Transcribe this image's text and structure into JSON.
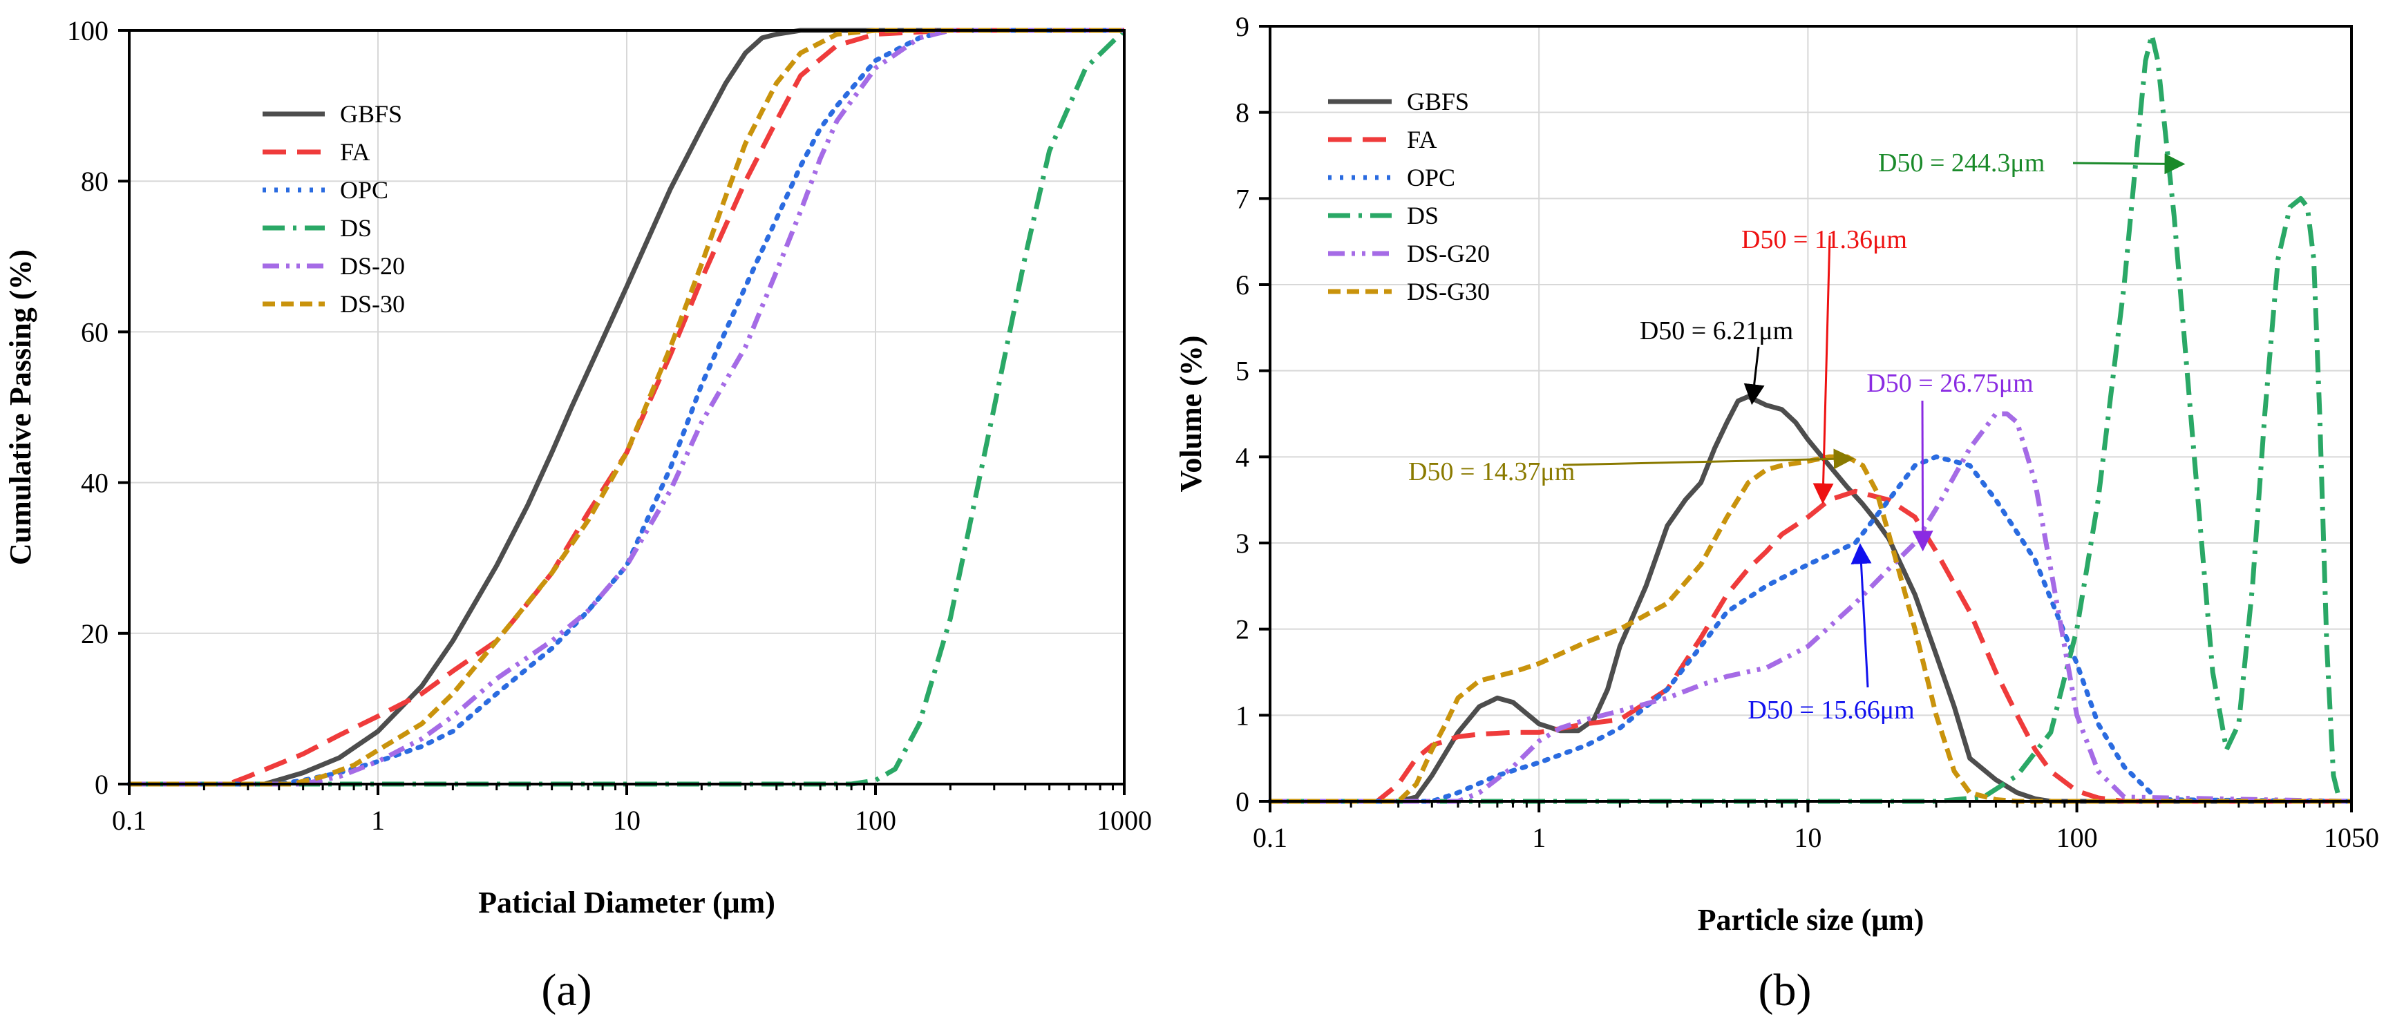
{
  "panels": [
    {
      "label": "(a)"
    },
    {
      "label": "(b)"
    }
  ],
  "chart_data": [
    {
      "type": "line",
      "xlabel": "Paticial Diameter (μm)",
      "ylabel": "Cumulative Passing (%)",
      "xscale": "log",
      "xlim": [
        0.1,
        1000
      ],
      "ylim": [
        0,
        100
      ],
      "xticks": [
        0.1,
        1,
        10,
        100,
        1000
      ],
      "xtick_labels": [
        "0.1",
        "1",
        "10",
        "100",
        "1000"
      ],
      "yticks": [
        0,
        20,
        40,
        60,
        80,
        100
      ],
      "ytick_labels": [
        "0",
        "20",
        "40",
        "60",
        "80",
        "100"
      ],
      "grid": true,
      "legend_position": "upper-left",
      "series": [
        {
          "name": "GBFS",
          "color": "#4d4d4d",
          "dash": "solid",
          "x": [
            0.1,
            0.35,
            0.5,
            0.7,
            1,
            1.5,
            2,
            3,
            4,
            5,
            6,
            8,
            10,
            15,
            20,
            25,
            30,
            35,
            40,
            50,
            70,
            100,
            1000
          ],
          "y": [
            0,
            0,
            1.5,
            3.5,
            7,
            13,
            19,
            29,
            37,
            44,
            50,
            59,
            66,
            79,
            87,
            93,
            97,
            99,
            99.5,
            100,
            100,
            100,
            100
          ]
        },
        {
          "name": "FA",
          "color": "#ef3b3b",
          "dash": "long-dash",
          "x": [
            0.1,
            0.25,
            0.3,
            0.5,
            0.7,
            1,
            1.5,
            2,
            3,
            4,
            5,
            7,
            10,
            15,
            20,
            30,
            40,
            50,
            70,
            100,
            200,
            1000
          ],
          "y": [
            0,
            0,
            1,
            4,
            6.5,
            9,
            12,
            15,
            19,
            24,
            28,
            36,
            44,
            57,
            67,
            80,
            88,
            94,
            98,
            99.5,
            100,
            100
          ]
        },
        {
          "name": "OPC",
          "color": "#2a6be0",
          "dash": "dot",
          "x": [
            0.1,
            0.4,
            0.5,
            0.7,
            1,
            1.5,
            2,
            3,
            5,
            7,
            10,
            15,
            20,
            30,
            40,
            50,
            60,
            70,
            100,
            150,
            200,
            1000
          ],
          "y": [
            0,
            0,
            0.5,
            1.5,
            3,
            5,
            7,
            12,
            18,
            23,
            29,
            42,
            53,
            66,
            75,
            82,
            87,
            90,
            96,
            99,
            100,
            100
          ]
        },
        {
          "name": "DS",
          "color": "#2aa866",
          "dash": "dash-dot",
          "x": [
            0.1,
            80,
            100,
            120,
            150,
            200,
            300,
            400,
            500,
            700,
            1000
          ],
          "y": [
            0,
            0,
            0.5,
            2,
            8,
            22,
            50,
            70,
            84,
            95,
            100
          ]
        },
        {
          "name": "DS-20",
          "color": "#a56be6",
          "dash": "dash-dot-dot",
          "x": [
            0.1,
            0.5,
            0.7,
            1,
            1.5,
            2,
            3,
            5,
            7,
            10,
            15,
            20,
            30,
            40,
            50,
            60,
            70,
            100,
            150,
            200,
            1000
          ],
          "y": [
            0,
            0,
            1,
            3,
            6,
            9,
            14,
            19,
            23,
            29,
            39,
            48,
            58,
            68,
            76,
            83,
            88,
            95,
            99,
            100,
            100
          ]
        },
        {
          "name": "DS-30",
          "color": "#c9930c",
          "dash": "dash",
          "x": [
            0.1,
            0.45,
            0.6,
            0.8,
            1,
            1.5,
            2,
            3,
            5,
            7,
            10,
            15,
            20,
            25,
            30,
            40,
            50,
            70,
            100,
            1000
          ],
          "y": [
            0,
            0,
            1,
            2.5,
            4.5,
            8,
            12,
            19,
            28,
            35,
            44,
            58,
            69,
            78,
            85,
            93,
            97,
            99.5,
            100,
            100
          ]
        }
      ]
    },
    {
      "type": "line",
      "xlabel": "Particle size (μm)",
      "ylabel": "Volume (%)",
      "xscale": "log",
      "xlim": [
        0.1,
        1050
      ],
      "ylim": [
        0,
        9
      ],
      "xticks": [
        0.1,
        1,
        10,
        100,
        1050
      ],
      "xtick_labels": [
        "0.1",
        "1",
        "10",
        "100",
        "1050"
      ],
      "yticks": [
        0,
        1,
        2,
        3,
        4,
        5,
        6,
        7,
        8,
        9
      ],
      "ytick_labels": [
        "0",
        "1",
        "2",
        "3",
        "4",
        "5",
        "6",
        "7",
        "8",
        "9"
      ],
      "grid": true,
      "legend_position": "upper-left",
      "series": [
        {
          "name": "GBFS",
          "color": "#4d4d4d",
          "dash": "solid",
          "x": [
            0.1,
            0.3,
            0.35,
            0.4,
            0.5,
            0.6,
            0.7,
            0.8,
            1,
            1.2,
            1.4,
            1.6,
            1.8,
            2,
            2.5,
            3,
            3.5,
            4,
            4.5,
            5,
            5.5,
            6,
            7,
            8,
            9,
            10,
            12,
            14,
            16,
            18,
            20,
            25,
            30,
            35,
            40,
            50,
            60,
            70,
            80,
            1050
          ],
          "y": [
            0,
            0,
            0.05,
            0.3,
            0.8,
            1.1,
            1.2,
            1.15,
            0.9,
            0.82,
            0.82,
            0.95,
            1.3,
            1.8,
            2.5,
            3.2,
            3.5,
            3.7,
            4.1,
            4.4,
            4.65,
            4.7,
            4.6,
            4.55,
            4.4,
            4.2,
            3.9,
            3.65,
            3.45,
            3.25,
            3.05,
            2.4,
            1.7,
            1.1,
            0.5,
            0.25,
            0.1,
            0.03,
            0,
            0
          ]
        },
        {
          "name": "FA",
          "color": "#ef3b3b",
          "dash": "long-dash",
          "x": [
            0.1,
            0.25,
            0.3,
            0.35,
            0.4,
            0.5,
            0.6,
            0.8,
            1,
            1.5,
            2,
            3,
            4,
            5,
            6,
            7,
            8,
            10,
            12,
            15,
            20,
            25,
            30,
            40,
            50,
            60,
            70,
            80,
            100,
            120,
            150,
            1050
          ],
          "y": [
            0,
            0,
            0.2,
            0.5,
            0.65,
            0.75,
            0.78,
            0.8,
            0.8,
            0.9,
            0.95,
            1.3,
            1.9,
            2.4,
            2.7,
            2.9,
            3.1,
            3.3,
            3.5,
            3.6,
            3.5,
            3.3,
            2.9,
            2.2,
            1.5,
            1.0,
            0.6,
            0.35,
            0.12,
            0.04,
            0,
            0
          ]
        },
        {
          "name": "OPC",
          "color": "#2a6be0",
          "dash": "dot",
          "x": [
            0.1,
            0.4,
            0.5,
            0.7,
            1,
            1.5,
            2,
            3,
            4,
            5,
            7,
            10,
            15,
            20,
            25,
            30,
            40,
            50,
            70,
            100,
            120,
            150,
            200,
            1050
          ],
          "y": [
            0,
            0,
            0.1,
            0.3,
            0.45,
            0.65,
            0.85,
            1.3,
            1.8,
            2.2,
            2.5,
            2.75,
            3.0,
            3.5,
            3.9,
            4.0,
            3.9,
            3.5,
            2.8,
            1.6,
            0.9,
            0.4,
            0.02,
            0
          ]
        },
        {
          "name": "DS",
          "color": "#2aa866",
          "dash": "dash-dot",
          "x": [
            0.1,
            30,
            45,
            60,
            80,
            100,
            120,
            150,
            170,
            180,
            190,
            200,
            230,
            270,
            320,
            360,
            400,
            450,
            500,
            560,
            620,
            680,
            720,
            760,
            800,
            850,
            900,
            950,
            1000,
            1050
          ],
          "y": [
            0,
            0,
            0.05,
            0.3,
            0.8,
            2.0,
            3.5,
            6.0,
            7.8,
            8.6,
            8.9,
            8.6,
            6.8,
            4.2,
            1.5,
            0.6,
            0.9,
            2.5,
            4.5,
            6.3,
            6.9,
            7.0,
            6.9,
            6.3,
            4.5,
            1.8,
            0.3,
            0,
            0,
            0
          ]
        },
        {
          "name": "DS-G20",
          "color": "#a56be6",
          "dash": "dash-dot-dot",
          "x": [
            0.1,
            0.5,
            0.6,
            0.8,
            1,
            1.2,
            1.5,
            2,
            3,
            4,
            5,
            7,
            10,
            15,
            20,
            25,
            30,
            40,
            50,
            55,
            60,
            70,
            80,
            100,
            120,
            150,
            1050
          ],
          "y": [
            0,
            0,
            0.1,
            0.4,
            0.7,
            0.85,
            0.95,
            1.05,
            1.2,
            1.35,
            1.45,
            1.55,
            1.8,
            2.3,
            2.7,
            3.0,
            3.4,
            4.1,
            4.5,
            4.5,
            4.4,
            3.7,
            2.7,
            1.0,
            0.35,
            0.05,
            0
          ]
        },
        {
          "name": "DS-G30",
          "color": "#c9930c",
          "dash": "dash",
          "x": [
            0.1,
            0.3,
            0.35,
            0.4,
            0.45,
            0.5,
            0.6,
            0.8,
            1,
            1.5,
            2,
            3,
            4,
            5,
            6,
            7,
            8,
            10,
            12,
            14,
            16,
            18,
            20,
            25,
            30,
            35,
            40,
            50,
            60,
            1050
          ],
          "y": [
            0,
            0,
            0.2,
            0.6,
            0.9,
            1.2,
            1.4,
            1.5,
            1.6,
            1.85,
            2.0,
            2.3,
            2.75,
            3.3,
            3.7,
            3.85,
            3.9,
            3.95,
            4.0,
            4.0,
            3.9,
            3.6,
            3.1,
            2.0,
            1.0,
            0.35,
            0.1,
            0.02,
            0,
            0
          ]
        }
      ],
      "annotations": [
        {
          "text": "D50 = 244.3μm",
          "color": "#1a8a2a",
          "arrow_x": 244.3,
          "arrow_y": 7.4
        },
        {
          "text": "D50 = 11.36μm",
          "color": "#ee1111",
          "arrow_x": 11.36,
          "arrow_y": 3.5
        },
        {
          "text": "D50 = 6.21μm",
          "color": "#000000",
          "arrow_x": 6.21,
          "arrow_y": 4.65
        },
        {
          "text": "D50 = 26.75μm",
          "color": "#8a2be2",
          "arrow_x": 26.75,
          "arrow_y": 2.95
        },
        {
          "text": "D50 = 14.37μm",
          "color": "#8a7a00",
          "arrow_x": 14.37,
          "arrow_y": 3.98
        },
        {
          "text": "D50 = 15.66μm",
          "color": "#1111ee",
          "arrow_x": 15.66,
          "arrow_y": 2.95
        }
      ]
    }
  ]
}
